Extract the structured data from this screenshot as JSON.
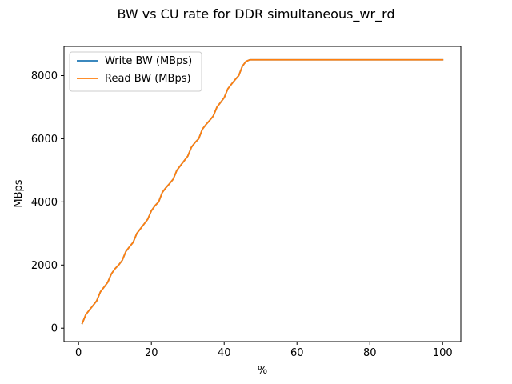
{
  "chart_data": {
    "type": "line",
    "title": "BW vs CU rate for DDR simultaneous_wr_rd",
    "xlabel": "%",
    "ylabel": "MBps",
    "xlim": [
      -4.0,
      105.0
    ],
    "ylim": [
      -425,
      8925
    ],
    "xticks": [
      0,
      20,
      40,
      60,
      80,
      100
    ],
    "yticks": [
      0,
      2000,
      4000,
      6000,
      8000
    ],
    "legend_position": "upper-left",
    "grid": false,
    "series": [
      {
        "name": "Write BW (MBps)",
        "color": "#1f77b4",
        "x": [
          1,
          2,
          3,
          4,
          5,
          6,
          7,
          8,
          9,
          10,
          11,
          12,
          13,
          14,
          15,
          16,
          17,
          18,
          19,
          20,
          21,
          22,
          23,
          24,
          25,
          26,
          27,
          28,
          29,
          30,
          31,
          32,
          33,
          34,
          35,
          36,
          37,
          38,
          39,
          40,
          41,
          42,
          43,
          44,
          45,
          46,
          47,
          48,
          49,
          50,
          51,
          52,
          53,
          54,
          55,
          56,
          57,
          58,
          59,
          60,
          61,
          62,
          63,
          64,
          65,
          66,
          67,
          68,
          69,
          70,
          71,
          72,
          73,
          74,
          75,
          76,
          77,
          78,
          79,
          80,
          81,
          82,
          83,
          84,
          85,
          86,
          87,
          88,
          89,
          90,
          91,
          92,
          93,
          94,
          95,
          96,
          97,
          98,
          99,
          100
        ],
        "y": [
          150,
          430,
          580,
          720,
          870,
          1150,
          1300,
          1450,
          1720,
          1880,
          2000,
          2150,
          2430,
          2580,
          2720,
          3000,
          3150,
          3300,
          3450,
          3720,
          3880,
          4000,
          4300,
          4450,
          4580,
          4720,
          5000,
          5150,
          5300,
          5450,
          5730,
          5880,
          6000,
          6300,
          6450,
          6580,
          6720,
          7000,
          7150,
          7300,
          7580,
          7730,
          7870,
          8000,
          8300,
          8450,
          8500,
          8500,
          8500,
          8500,
          8500,
          8500,
          8500,
          8500,
          8500,
          8500,
          8500,
          8500,
          8500,
          8500,
          8500,
          8500,
          8500,
          8500,
          8500,
          8500,
          8500,
          8500,
          8500,
          8500,
          8500,
          8500,
          8500,
          8500,
          8500,
          8500,
          8500,
          8500,
          8500,
          8500,
          8500,
          8500,
          8500,
          8500,
          8500,
          8500,
          8500,
          8500,
          8500,
          8500,
          8500,
          8500,
          8500,
          8500,
          8500,
          8500,
          8500,
          8500,
          8500,
          8500
        ]
      },
      {
        "name": "Read BW (MBps)",
        "color": "#ff7f0e",
        "x": [
          1,
          2,
          3,
          4,
          5,
          6,
          7,
          8,
          9,
          10,
          11,
          12,
          13,
          14,
          15,
          16,
          17,
          18,
          19,
          20,
          21,
          22,
          23,
          24,
          25,
          26,
          27,
          28,
          29,
          30,
          31,
          32,
          33,
          34,
          35,
          36,
          37,
          38,
          39,
          40,
          41,
          42,
          43,
          44,
          45,
          46,
          47,
          48,
          49,
          50,
          51,
          52,
          53,
          54,
          55,
          56,
          57,
          58,
          59,
          60,
          61,
          62,
          63,
          64,
          65,
          66,
          67,
          68,
          69,
          70,
          71,
          72,
          73,
          74,
          75,
          76,
          77,
          78,
          79,
          80,
          81,
          82,
          83,
          84,
          85,
          86,
          87,
          88,
          89,
          90,
          91,
          92,
          93,
          94,
          95,
          96,
          97,
          98,
          99,
          100
        ],
        "y": [
          150,
          430,
          580,
          720,
          870,
          1150,
          1300,
          1450,
          1720,
          1880,
          2000,
          2150,
          2430,
          2580,
          2720,
          3000,
          3150,
          3300,
          3450,
          3720,
          3880,
          4000,
          4300,
          4450,
          4580,
          4720,
          5000,
          5150,
          5300,
          5450,
          5730,
          5880,
          6000,
          6300,
          6450,
          6580,
          6720,
          7000,
          7150,
          7300,
          7580,
          7730,
          7870,
          8000,
          8300,
          8450,
          8500,
          8500,
          8500,
          8500,
          8500,
          8500,
          8500,
          8500,
          8500,
          8500,
          8500,
          8500,
          8500,
          8500,
          8500,
          8500,
          8500,
          8500,
          8500,
          8500,
          8500,
          8500,
          8500,
          8500,
          8500,
          8500,
          8500,
          8500,
          8500,
          8500,
          8500,
          8500,
          8500,
          8500,
          8500,
          8500,
          8500,
          8500,
          8500,
          8500,
          8500,
          8500,
          8500,
          8500,
          8500,
          8500,
          8500,
          8500,
          8500,
          8500,
          8500,
          8500,
          8500,
          8500
        ]
      }
    ]
  }
}
